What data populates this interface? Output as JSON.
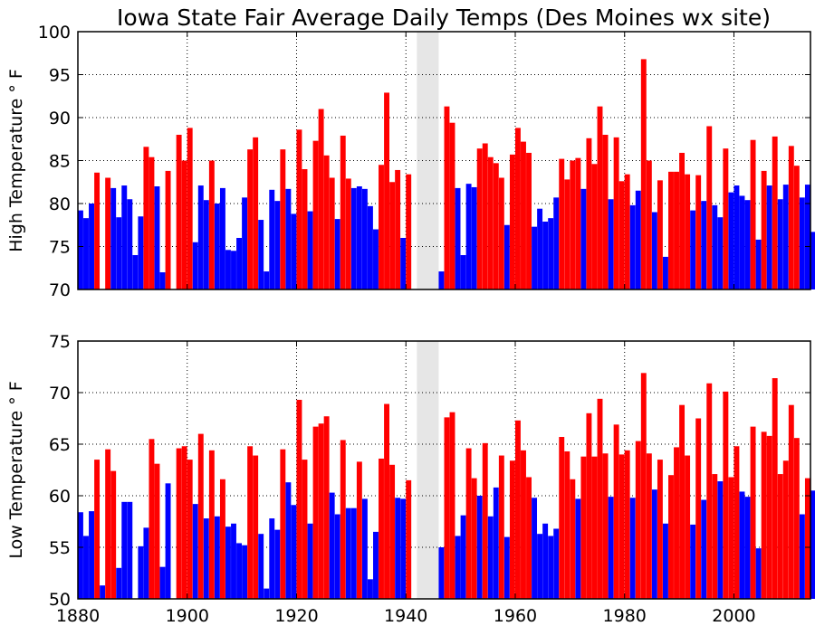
{
  "chart_data": {
    "title": "Iowa State Fair Average Daily Temps (Des Moines wx site)",
    "type": "bar",
    "year_start": 1880,
    "x_range": [
      1880,
      2014
    ],
    "x_ticks": [
      1880,
      1900,
      1920,
      1940,
      1960,
      1980,
      2000
    ],
    "gap_years": [
      1942,
      1943,
      1944,
      1945
    ],
    "gap_fill": "#e6e6e6",
    "colors": {
      "above": "#ff0000",
      "below": "#0000ff"
    },
    "grid": true,
    "panels": [
      {
        "id": "high",
        "ylabel": "High Temperature ° F",
        "ylim": [
          70,
          100
        ],
        "yticks": [
          70,
          75,
          80,
          85,
          90,
          95,
          100
        ],
        "threshold": 82.5,
        "values": [
          79.2,
          78.3,
          80.0,
          83.6,
          70.0,
          83.0,
          81.8,
          78.4,
          82.1,
          80.5,
          74.0,
          78.5,
          86.6,
          85.4,
          82.0,
          72.0,
          83.8,
          70.0,
          88.0,
          85.0,
          88.8,
          75.5,
          82.1,
          80.4,
          85.0,
          80.0,
          81.8,
          74.6,
          74.5,
          76.0,
          80.7,
          86.3,
          87.7,
          78.1,
          72.1,
          81.6,
          80.3,
          86.3,
          81.7,
          78.8,
          88.6,
          84.0,
          79.1,
          87.3,
          91.0,
          85.6,
          83.0,
          78.2,
          87.9,
          82.9,
          81.8,
          82.0,
          81.7,
          79.7,
          77.0,
          84.5,
          92.9,
          82.5,
          83.9,
          76.0,
          83.4,
          70.0,
          null,
          null,
          null,
          null,
          72.1,
          91.3,
          89.4,
          81.8,
          74.0,
          82.3,
          81.9,
          86.4,
          87.0,
          85.4,
          84.7,
          83.0,
          77.5,
          85.7,
          88.8,
          87.2,
          85.9,
          77.3,
          79.4,
          77.9,
          78.3,
          80.7,
          85.2,
          82.8,
          85.0,
          85.3,
          81.7,
          87.6,
          84.6,
          91.3,
          88.0,
          80.5,
          87.7,
          82.6,
          83.4,
          79.8,
          81.5,
          96.8,
          85.0,
          79.0,
          82.7,
          73.8,
          83.7,
          83.7,
          85.9,
          83.4,
          79.2,
          83.3,
          80.3,
          89.0,
          79.8,
          78.4,
          86.4,
          81.3,
          82.1,
          80.9,
          80.4,
          87.4,
          75.8,
          83.8,
          82.1,
          87.8,
          80.5,
          82.2,
          86.7,
          84.4,
          80.7,
          82.2,
          76.7
        ]
      },
      {
        "id": "low",
        "ylabel": "Low Temperature ° F",
        "ylim": [
          50,
          75
        ],
        "yticks": [
          50,
          55,
          60,
          65,
          70,
          75
        ],
        "threshold": 61.5,
        "values": [
          58.4,
          56.1,
          58.5,
          63.5,
          51.3,
          64.5,
          62.4,
          53.0,
          59.4,
          59.4,
          50.0,
          55.1,
          56.9,
          65.5,
          63.1,
          53.1,
          61.2,
          50.0,
          64.6,
          64.8,
          63.5,
          59.2,
          66.0,
          57.8,
          64.4,
          58.0,
          61.6,
          57.0,
          57.3,
          55.4,
          55.2,
          64.8,
          63.9,
          56.3,
          51.0,
          57.8,
          56.7,
          64.5,
          61.3,
          59.1,
          69.3,
          63.5,
          57.3,
          66.7,
          67.0,
          67.7,
          60.3,
          58.2,
          65.4,
          58.8,
          58.8,
          63.3,
          59.7,
          51.9,
          56.5,
          63.6,
          68.9,
          63.0,
          59.8,
          59.7,
          61.5,
          50.0,
          null,
          null,
          null,
          null,
          55.0,
          67.6,
          68.1,
          56.1,
          58.1,
          64.6,
          61.7,
          60.0,
          65.1,
          58.0,
          60.8,
          63.9,
          56.0,
          63.4,
          67.3,
          64.4,
          61.8,
          59.8,
          56.3,
          57.3,
          56.1,
          56.8,
          65.7,
          64.3,
          61.6,
          59.7,
          63.8,
          68.0,
          63.8,
          69.4,
          64.1,
          59.9,
          66.9,
          64.0,
          64.4,
          59.8,
          65.3,
          71.9,
          64.1,
          60.6,
          63.5,
          57.3,
          62.0,
          64.7,
          68.8,
          63.9,
          57.2,
          67.5,
          59.6,
          70.9,
          62.1,
          61.4,
          70.1,
          61.8,
          64.8,
          60.4,
          59.9,
          66.7,
          54.9,
          66.2,
          65.8,
          71.4,
          62.1,
          63.4,
          68.8,
          65.6,
          58.2,
          61.7,
          60.5
        ]
      }
    ]
  }
}
